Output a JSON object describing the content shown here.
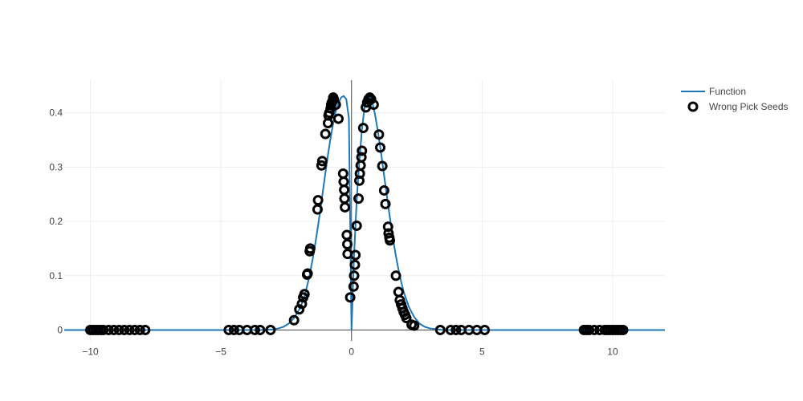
{
  "chart_data": {
    "type": "scatter",
    "xlim": [
      -11,
      12
    ],
    "ylim": [
      -0.02,
      0.46
    ],
    "xticks": [
      -10,
      -5,
      0,
      5,
      10
    ],
    "xtick_labels": [
      "−10",
      "−5",
      "0",
      "5",
      "10"
    ],
    "yticks": [
      0,
      0.1,
      0.2,
      0.3,
      0.4
    ],
    "ytick_labels": [
      "0",
      "0.1",
      "0.2",
      "0.3",
      "0.4"
    ],
    "grid": true,
    "legend_position": "top-right",
    "colors": {
      "line": "#1f77b4",
      "marker": "#000000",
      "grid": "#eeeeee",
      "axis": "#444444"
    },
    "series": [
      {
        "name": "Function",
        "kind": "line",
        "formula_points": [
          [
            -11,
            0.0
          ],
          [
            -10,
            0.0
          ],
          [
            -9,
            0.0
          ],
          [
            -8,
            0.0
          ],
          [
            -7,
            0.0
          ],
          [
            -6,
            0.0
          ],
          [
            -5,
            0.0
          ],
          [
            -4.5,
            0.0
          ],
          [
            -4,
            0.0
          ],
          [
            -3.5,
            0.0
          ],
          [
            -3,
            0.001
          ],
          [
            -2.8,
            0.003
          ],
          [
            -2.6,
            0.006
          ],
          [
            -2.4,
            0.012
          ],
          [
            -2.2,
            0.022
          ],
          [
            -2.0,
            0.038
          ],
          [
            -1.9,
            0.049
          ],
          [
            -1.8,
            0.063
          ],
          [
            -1.7,
            0.081
          ],
          [
            -1.6,
            0.102
          ],
          [
            -1.5,
            0.127
          ],
          [
            -1.4,
            0.155
          ],
          [
            -1.3,
            0.186
          ],
          [
            -1.2,
            0.219
          ],
          [
            -1.1,
            0.254
          ],
          [
            -1.0,
            0.289
          ],
          [
            -0.9,
            0.323
          ],
          [
            -0.8,
            0.354
          ],
          [
            -0.7,
            0.381
          ],
          [
            -0.6,
            0.403
          ],
          [
            -0.5,
            0.418
          ],
          [
            -0.4,
            0.428
          ],
          [
            -0.3,
            0.431
          ],
          [
            -0.2,
            0.425
          ],
          [
            -0.1,
            0.39
          ],
          [
            0.0,
            0.0
          ],
          [
            0.03,
            0.04
          ],
          [
            0.06,
            0.09
          ],
          [
            0.1,
            0.14
          ],
          [
            0.15,
            0.19
          ],
          [
            0.2,
            0.24
          ],
          [
            0.3,
            0.31
          ],
          [
            0.4,
            0.37
          ],
          [
            0.5,
            0.41
          ],
          [
            0.6,
            0.426
          ],
          [
            0.7,
            0.429
          ],
          [
            0.8,
            0.418
          ],
          [
            0.9,
            0.397
          ],
          [
            1.0,
            0.369
          ],
          [
            1.1,
            0.337
          ],
          [
            1.2,
            0.302
          ],
          [
            1.3,
            0.266
          ],
          [
            1.4,
            0.231
          ],
          [
            1.5,
            0.197
          ],
          [
            1.6,
            0.165
          ],
          [
            1.7,
            0.136
          ],
          [
            1.8,
            0.111
          ],
          [
            1.9,
            0.089
          ],
          [
            2.0,
            0.07
          ],
          [
            2.2,
            0.042
          ],
          [
            2.4,
            0.024
          ],
          [
            2.6,
            0.012
          ],
          [
            2.8,
            0.006
          ],
          [
            3.0,
            0.003
          ],
          [
            3.5,
            0.0
          ],
          [
            4,
            0.0
          ],
          [
            5,
            0.0
          ],
          [
            6,
            0.0
          ],
          [
            7,
            0.0
          ],
          [
            8,
            0.0
          ],
          [
            9,
            0.0
          ],
          [
            10,
            0.0
          ],
          [
            11,
            0.0
          ],
          [
            12,
            0.0
          ]
        ]
      },
      {
        "name": "Wrong Pick Seeds",
        "kind": "markers",
        "points": [
          [
            -10.0,
            0.0
          ],
          [
            -9.9,
            0.0
          ],
          [
            -9.8,
            0.0
          ],
          [
            -9.7,
            0.0
          ],
          [
            -9.6,
            0.0
          ],
          [
            -9.5,
            0.0
          ],
          [
            -9.3,
            0.0
          ],
          [
            -9.1,
            0.0
          ],
          [
            -8.9,
            0.0
          ],
          [
            -8.7,
            0.0
          ],
          [
            -8.5,
            0.0
          ],
          [
            -8.3,
            0.0
          ],
          [
            -8.1,
            0.0
          ],
          [
            -7.9,
            0.0
          ],
          [
            -4.7,
            0.0
          ],
          [
            -4.5,
            0.0
          ],
          [
            -4.3,
            0.0
          ],
          [
            -4.0,
            0.0
          ],
          [
            -3.7,
            0.0
          ],
          [
            -3.5,
            0.0
          ],
          [
            -3.1,
            0.0
          ],
          [
            -2.2,
            0.018
          ],
          [
            -2.0,
            0.038
          ],
          [
            -1.9,
            0.048
          ],
          [
            -1.85,
            0.06
          ],
          [
            -1.8,
            0.066
          ],
          [
            -1.7,
            0.102
          ],
          [
            -1.68,
            0.104
          ],
          [
            -1.6,
            0.145
          ],
          [
            -1.58,
            0.15
          ],
          [
            -1.3,
            0.222
          ],
          [
            -1.28,
            0.239
          ],
          [
            -1.15,
            0.303
          ],
          [
            -1.12,
            0.311
          ],
          [
            -1.0,
            0.361
          ],
          [
            -0.9,
            0.381
          ],
          [
            -0.88,
            0.395
          ],
          [
            -0.85,
            0.4
          ],
          [
            -0.8,
            0.408
          ],
          [
            -0.78,
            0.415
          ],
          [
            -0.75,
            0.419
          ],
          [
            -0.72,
            0.422
          ],
          [
            -0.7,
            0.428
          ],
          [
            -0.68,
            0.425
          ],
          [
            -0.6,
            0.415
          ],
          [
            -0.5,
            0.389
          ],
          [
            -0.32,
            0.288
          ],
          [
            -0.3,
            0.273
          ],
          [
            -0.28,
            0.258
          ],
          [
            -0.27,
            0.242
          ],
          [
            -0.25,
            0.226
          ],
          [
            -0.18,
            0.175
          ],
          [
            -0.16,
            0.158
          ],
          [
            -0.15,
            0.14
          ],
          [
            -0.05,
            0.06
          ],
          [
            0.08,
            0.08
          ],
          [
            0.1,
            0.1
          ],
          [
            0.13,
            0.12
          ],
          [
            0.15,
            0.138
          ],
          [
            0.2,
            0.192
          ],
          [
            0.27,
            0.242
          ],
          [
            0.3,
            0.275
          ],
          [
            0.32,
            0.288
          ],
          [
            0.35,
            0.303
          ],
          [
            0.38,
            0.318
          ],
          [
            0.4,
            0.33
          ],
          [
            0.45,
            0.372
          ],
          [
            0.55,
            0.41
          ],
          [
            0.6,
            0.419
          ],
          [
            0.65,
            0.425
          ],
          [
            0.7,
            0.428
          ],
          [
            0.75,
            0.425
          ],
          [
            0.85,
            0.415
          ],
          [
            1.05,
            0.36
          ],
          [
            1.1,
            0.336
          ],
          [
            1.18,
            0.302
          ],
          [
            1.25,
            0.257
          ],
          [
            1.3,
            0.232
          ],
          [
            1.4,
            0.19
          ],
          [
            1.42,
            0.178
          ],
          [
            1.45,
            0.17
          ],
          [
            1.47,
            0.165
          ],
          [
            1.7,
            0.1
          ],
          [
            1.8,
            0.07
          ],
          [
            1.85,
            0.055
          ],
          [
            1.9,
            0.047
          ],
          [
            1.95,
            0.04
          ],
          [
            2.0,
            0.033
          ],
          [
            2.05,
            0.028
          ],
          [
            2.1,
            0.022
          ],
          [
            2.3,
            0.01
          ],
          [
            2.4,
            0.008
          ],
          [
            3.4,
            0.0
          ],
          [
            3.8,
            0.0
          ],
          [
            4.0,
            0.0
          ],
          [
            4.2,
            0.0
          ],
          [
            4.5,
            0.0
          ],
          [
            4.8,
            0.0
          ],
          [
            5.1,
            0.0
          ],
          [
            8.9,
            0.0
          ],
          [
            9.0,
            0.0
          ],
          [
            9.1,
            0.0
          ],
          [
            9.3,
            0.0
          ],
          [
            9.5,
            0.0
          ],
          [
            9.7,
            0.0
          ],
          [
            9.8,
            0.0
          ],
          [
            9.9,
            0.0
          ],
          [
            10.0,
            0.0
          ],
          [
            10.1,
            0.0
          ],
          [
            10.2,
            0.0
          ],
          [
            10.3,
            0.0
          ],
          [
            10.4,
            0.0
          ]
        ]
      }
    ],
    "title": "",
    "xlabel": "",
    "ylabel": ""
  }
}
